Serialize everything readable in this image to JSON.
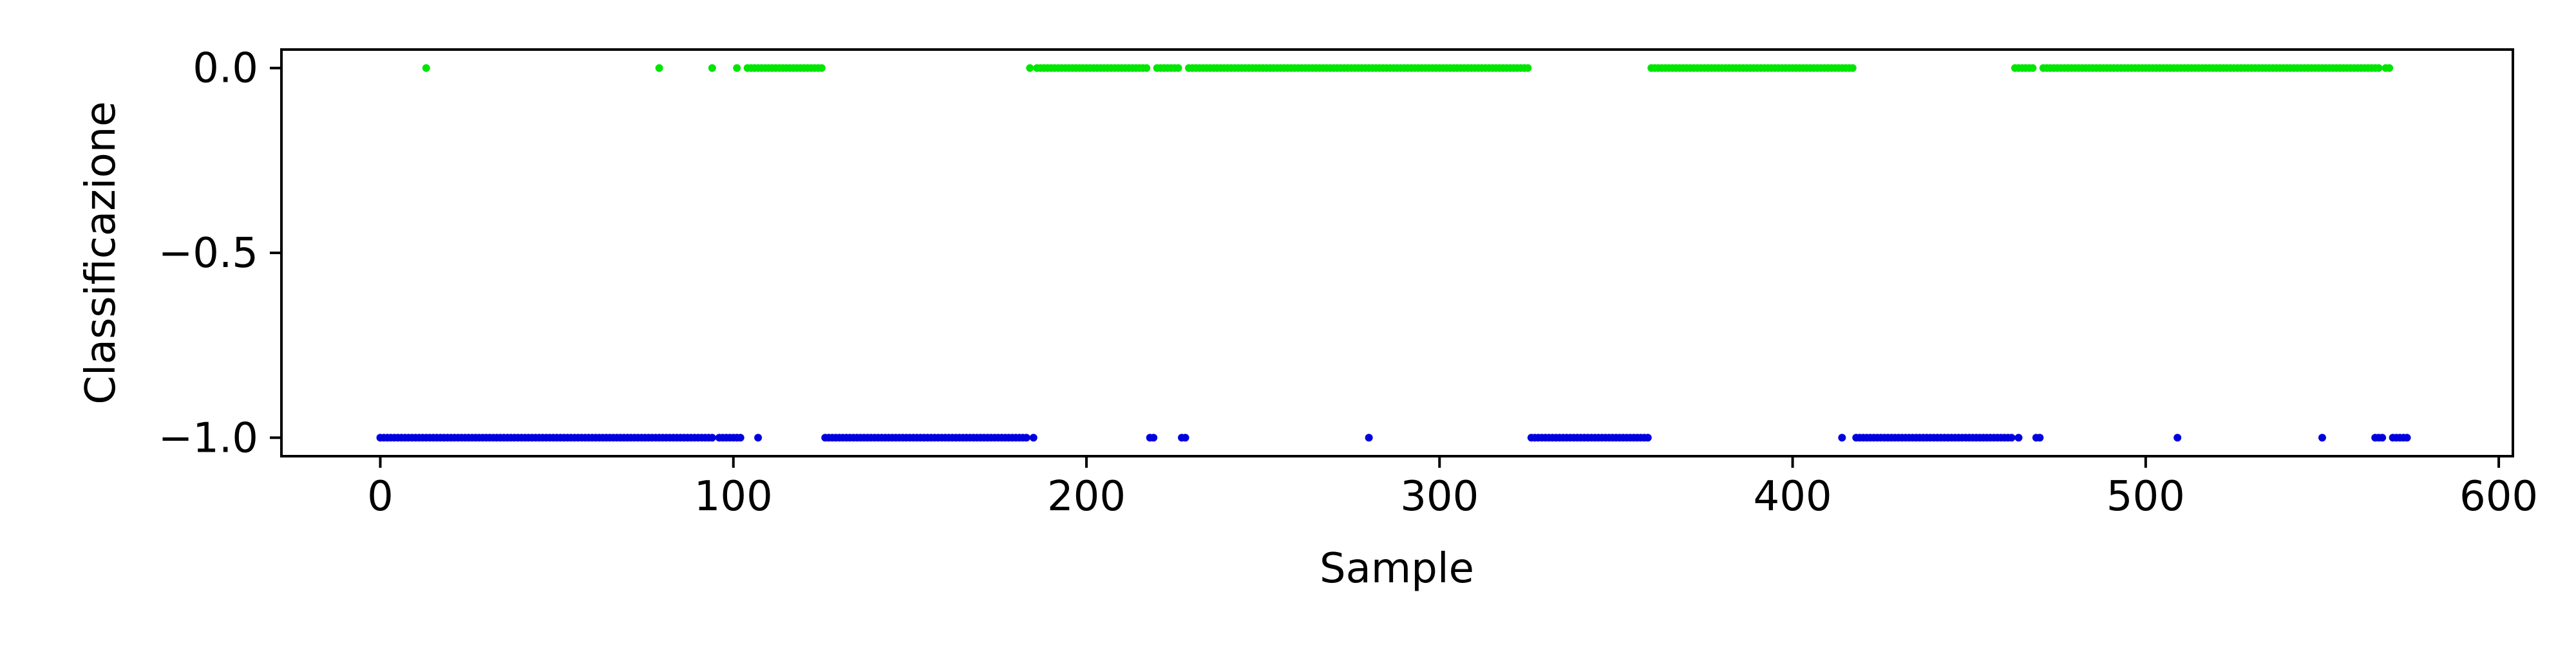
{
  "chart_data": {
    "type": "scatter",
    "title": "",
    "xlabel": "Sample",
    "ylabel": "Classificazione",
    "xlim": [
      -28,
      604
    ],
    "ylim": [
      -1.05,
      0.05
    ],
    "x_ticks": [
      0,
      100,
      200,
      300,
      400,
      500,
      600
    ],
    "x_tick_labels": [
      "0",
      "100",
      "200",
      "300",
      "400",
      "500",
      "600"
    ],
    "y_ticks": [
      0.0,
      -0.5,
      -1.0
    ],
    "y_tick_labels": [
      "0.0",
      "−0.5",
      "−1.0"
    ],
    "grid": false,
    "legend": "none",
    "series": [
      {
        "y": 0.0,
        "color": "#00e600",
        "x_ranges": [
          [
            13,
            13
          ],
          [
            79,
            79
          ],
          [
            94,
            94
          ],
          [
            101,
            101
          ],
          [
            104,
            125
          ],
          [
            184,
            184
          ],
          [
            186,
            217
          ],
          [
            220,
            226
          ],
          [
            229,
            325
          ],
          [
            360,
            417
          ],
          [
            463,
            468
          ],
          [
            471,
            566
          ],
          [
            568,
            569
          ]
        ]
      },
      {
        "y": -1.0,
        "color": "#0000dd",
        "x_ranges": [
          [
            0,
            94
          ],
          [
            96,
            102
          ],
          [
            107,
            107
          ],
          [
            126,
            183
          ],
          [
            185,
            185
          ],
          [
            218,
            219
          ],
          [
            227,
            228
          ],
          [
            280,
            280
          ],
          [
            326,
            359
          ],
          [
            414,
            414
          ],
          [
            418,
            462
          ],
          [
            464,
            464
          ],
          [
            469,
            470
          ],
          [
            509,
            509
          ],
          [
            550,
            550
          ],
          [
            565,
            567
          ],
          [
            570,
            574
          ]
        ]
      }
    ]
  }
}
